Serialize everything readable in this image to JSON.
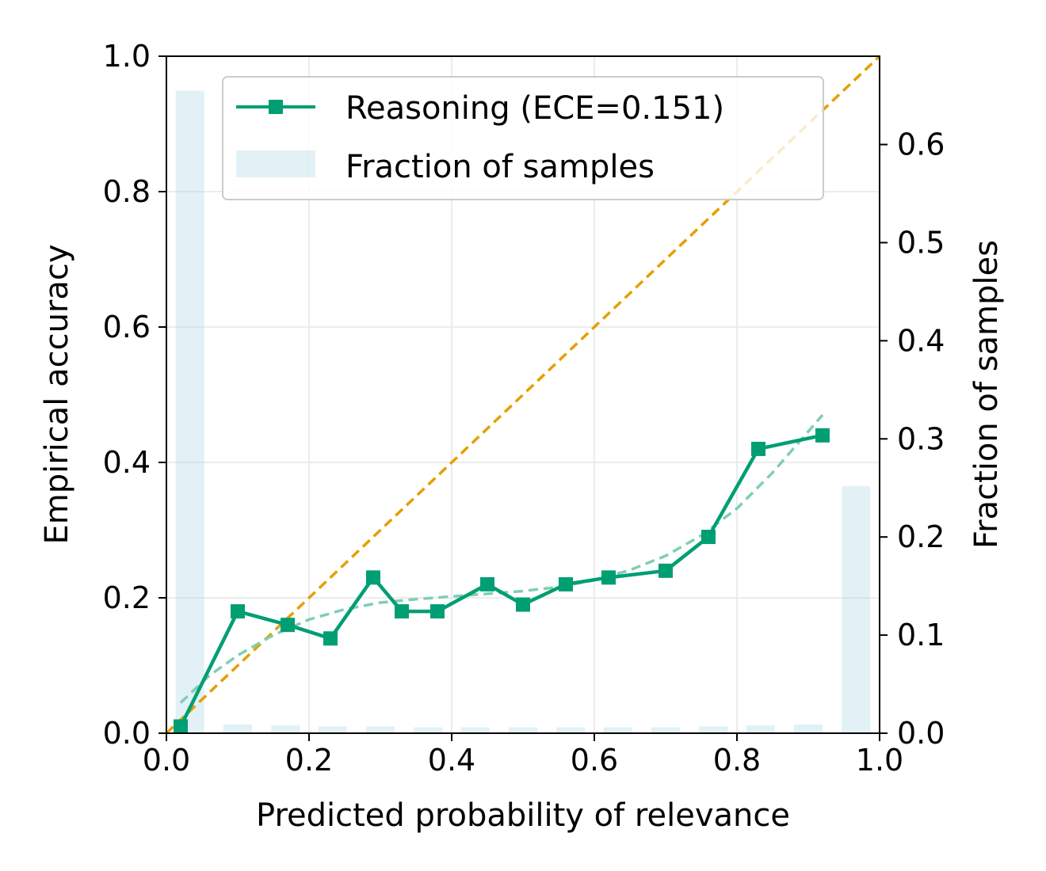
{
  "chart_data": {
    "type": "line",
    "xlabel": "Predicted probability of relevance",
    "ylabel": "Empirical accuracy",
    "y2label": "Fraction of samples",
    "xlim": [
      0,
      1
    ],
    "ylim": [
      0,
      1
    ],
    "y2lim": [
      0,
      0.69
    ],
    "xticks": [
      "0.0",
      "0.2",
      "0.4",
      "0.6",
      "0.8",
      "1.0"
    ],
    "yticks": [
      "0.0",
      "0.2",
      "0.4",
      "0.6",
      "0.8",
      "1.0"
    ],
    "y2ticks": [
      "0.0",
      "0.1",
      "0.2",
      "0.3",
      "0.4",
      "0.5",
      "0.6"
    ],
    "grid": true,
    "legend_position": "top",
    "legend": [
      {
        "label": "Reasoning (ECE=0.151)",
        "kind": "line-square"
      },
      {
        "label": "Fraction of samples",
        "kind": "patch"
      }
    ],
    "series": [
      {
        "name": "Reasoning (ECE=0.151)",
        "color": "#009e73",
        "marker": "square",
        "x": [
          0.02,
          0.1,
          0.17,
          0.23,
          0.29,
          0.33,
          0.38,
          0.45,
          0.5,
          0.56,
          0.62,
          0.7,
          0.76,
          0.83,
          0.92
        ],
        "y": [
          0.01,
          0.18,
          0.16,
          0.14,
          0.23,
          0.18,
          0.18,
          0.22,
          0.19,
          0.22,
          0.23,
          0.24,
          0.29,
          0.42,
          0.44
        ]
      }
    ],
    "trend": {
      "color": "#7fcfb0",
      "style": "dashed",
      "x": [
        0.02,
        0.06,
        0.1,
        0.15,
        0.2,
        0.25,
        0.3,
        0.35,
        0.4,
        0.45,
        0.5,
        0.55,
        0.6,
        0.65,
        0.7,
        0.75,
        0.8,
        0.85,
        0.92
      ],
      "y": [
        0.045,
        0.085,
        0.115,
        0.145,
        0.168,
        0.183,
        0.193,
        0.198,
        0.202,
        0.206,
        0.21,
        0.216,
        0.226,
        0.241,
        0.262,
        0.292,
        0.332,
        0.385,
        0.47
      ]
    },
    "diagonal": {
      "color": "#e69f00",
      "style": "dashed",
      "x": [
        0,
        1
      ],
      "y": [
        0,
        1
      ]
    },
    "histogram": {
      "name": "Fraction of samples",
      "color": "#add8e6",
      "bin_centers": [
        0.033,
        0.1,
        0.167,
        0.233,
        0.3,
        0.367,
        0.433,
        0.5,
        0.567,
        0.633,
        0.7,
        0.767,
        0.833,
        0.9,
        0.967
      ],
      "values": [
        0.655,
        0.009,
        0.008,
        0.007,
        0.007,
        0.006,
        0.006,
        0.006,
        0.006,
        0.006,
        0.006,
        0.007,
        0.008,
        0.009,
        0.252
      ]
    }
  }
}
